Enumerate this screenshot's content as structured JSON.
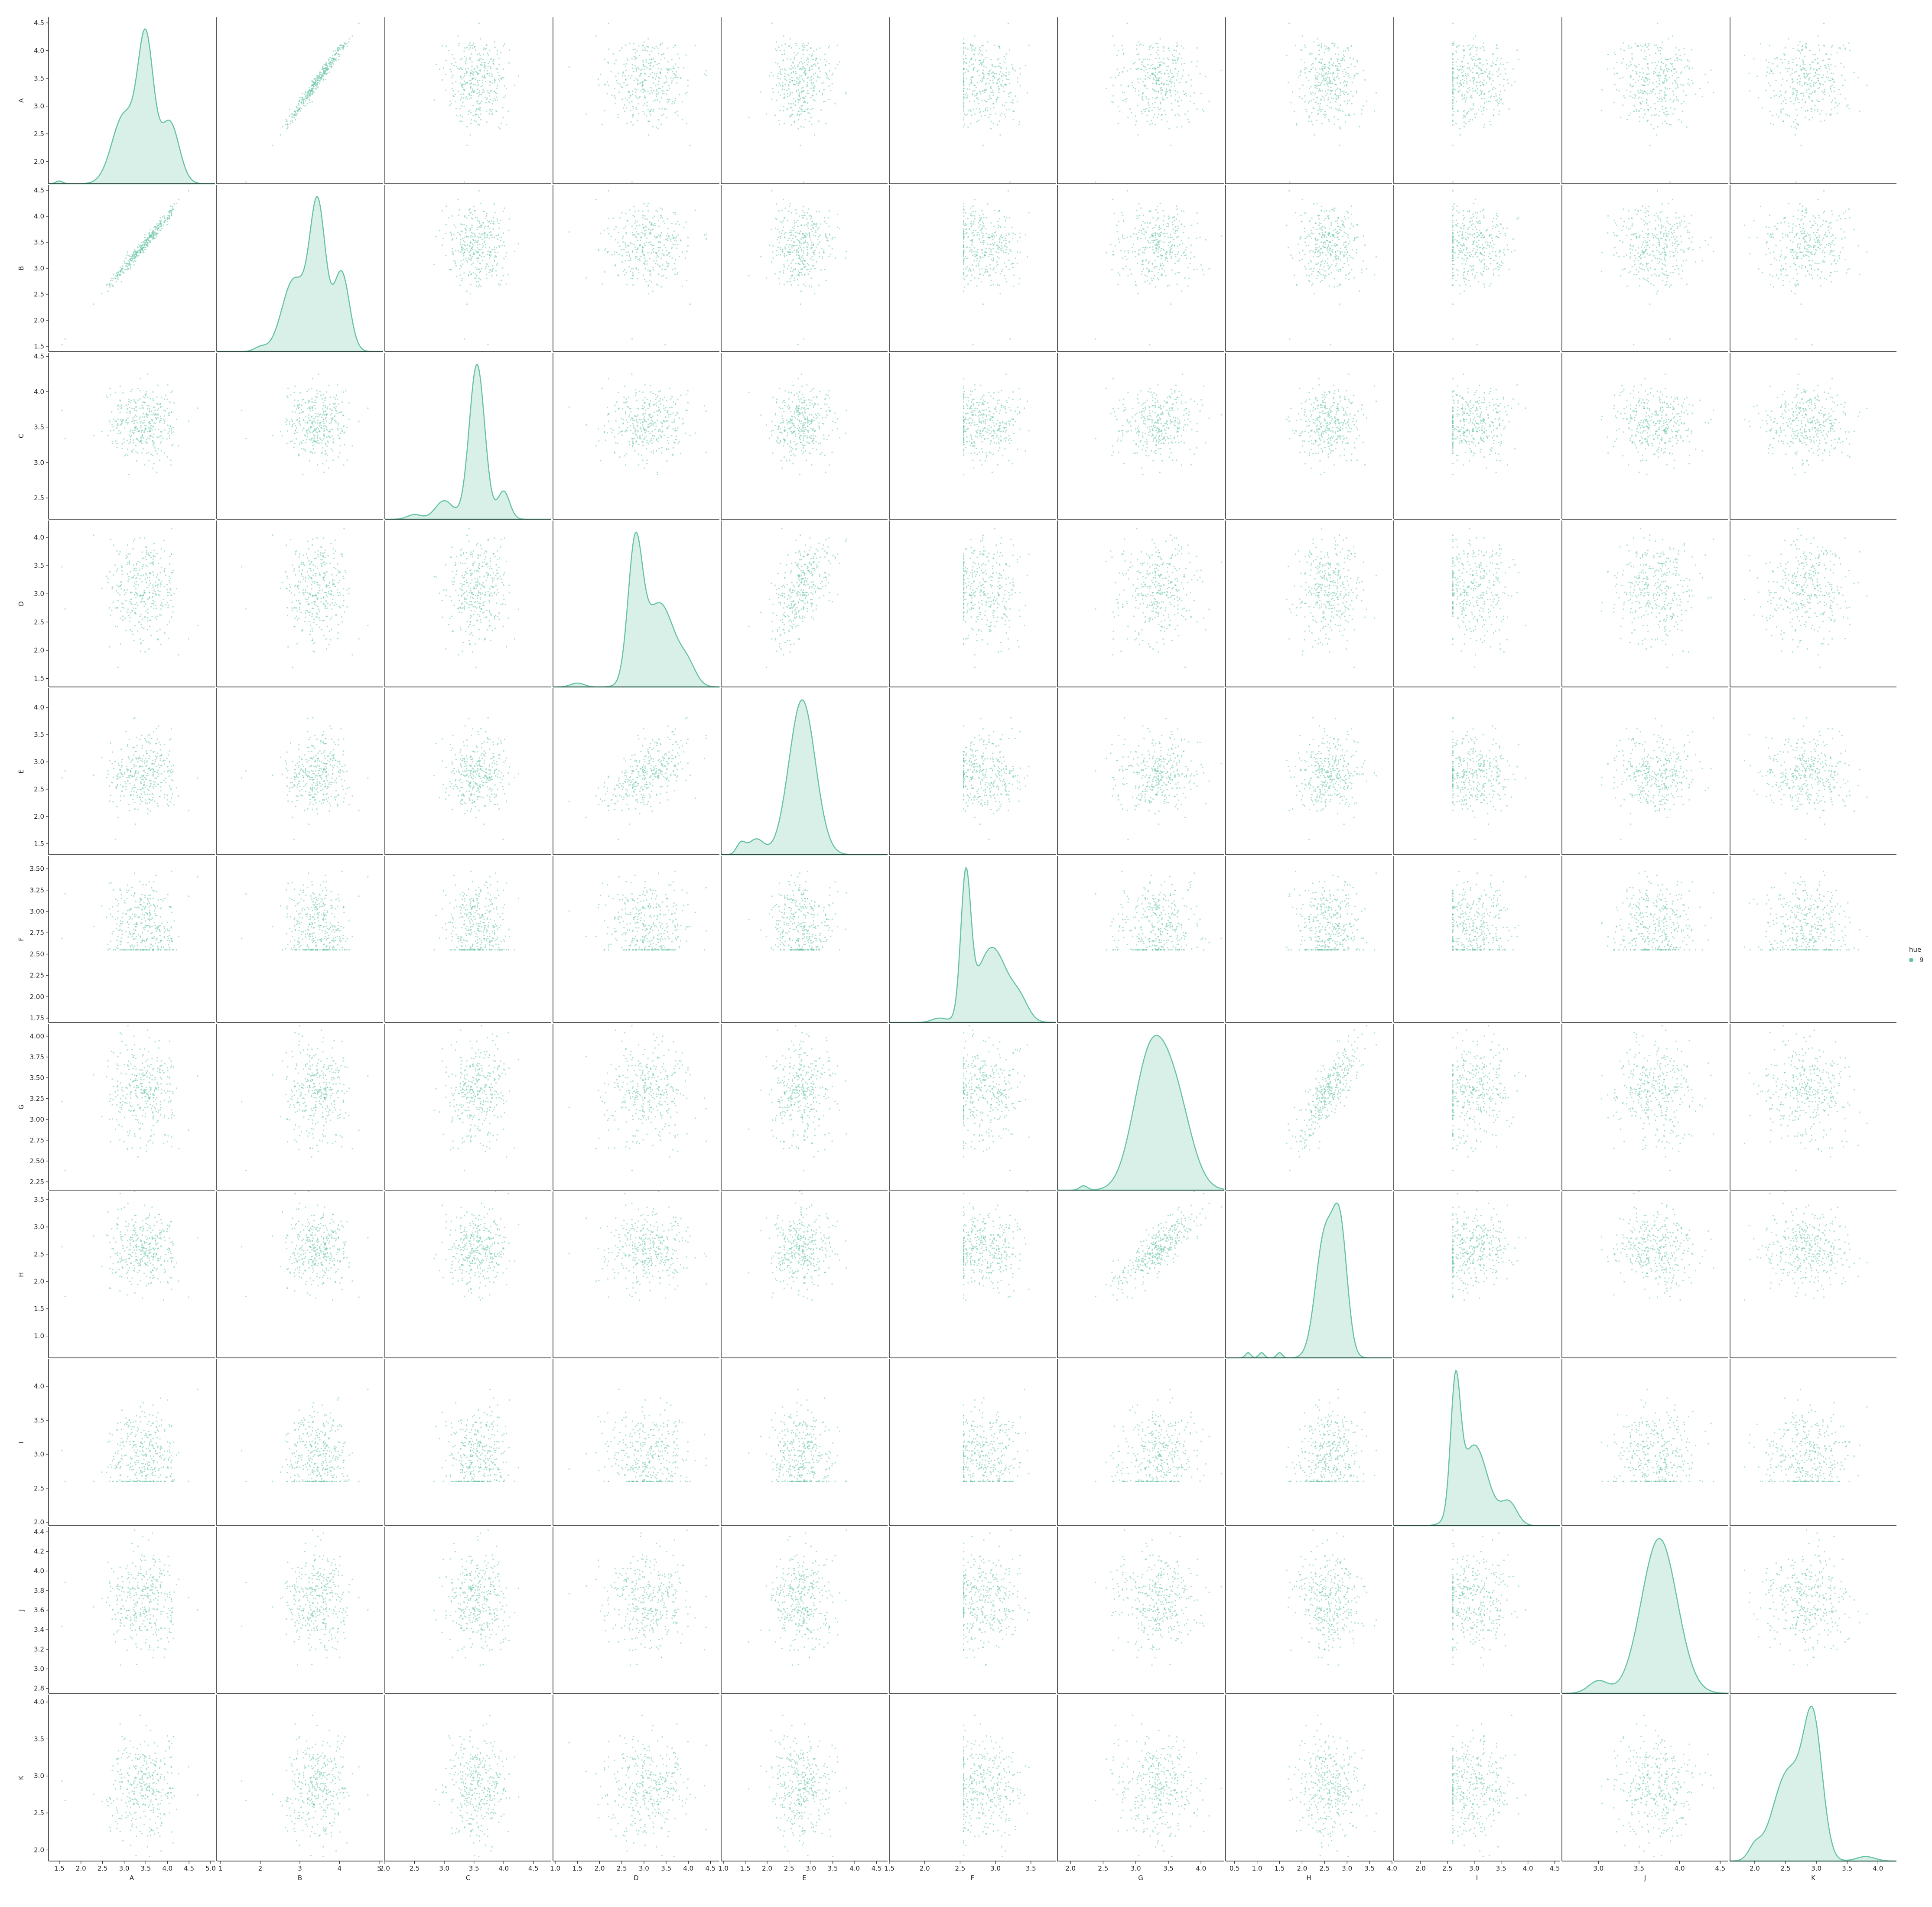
{
  "chart_data": {
    "type": "pairplot",
    "variables": [
      "A",
      "B",
      "C",
      "D",
      "E",
      "F",
      "G",
      "H",
      "I",
      "J",
      "K"
    ],
    "diagonal": "kde",
    "offdiagonal": "scatter",
    "legend": {
      "title": "hue",
      "entries": [
        "9"
      ],
      "placement": "right"
    },
    "color": "#66c2a5",
    "axes": [
      {
        "name": "A",
        "lim": [
          1.25,
          5.1
        ],
        "ticks": [
          "1.5",
          "2.0",
          "2.5",
          "3.0",
          "3.5",
          "4.0",
          "4.5",
          "5.0"
        ],
        "rowlim": [
          1.6,
          4.6
        ],
        "rowticks": [
          "2.0",
          "2.5",
          "3.0",
          "3.5",
          "4.0",
          "4.5"
        ],
        "mean": 3.45,
        "sd": 0.45
      },
      {
        "name": "B",
        "lim": [
          0.9,
          5.1
        ],
        "ticks": [
          "1",
          "2",
          "3",
          "4",
          "5"
        ],
        "rowlim": [
          1.4,
          4.6
        ],
        "rowticks": [
          "1.5",
          "2.0",
          "2.5",
          "3.0",
          "3.5",
          "4.0",
          "4.5"
        ],
        "mean": 3.45,
        "sd": 0.45
      },
      {
        "name": "C",
        "lim": [
          2.0,
          4.8
        ],
        "ticks": [
          "2.0",
          "2.5",
          "3.0",
          "3.5",
          "4.0",
          "4.5"
        ],
        "rowlim": [
          2.2,
          4.55
        ],
        "rowticks": [
          "2.5",
          "3.0",
          "3.5",
          "4.0",
          "4.5"
        ],
        "mean": 3.55,
        "sd": 0.25
      },
      {
        "name": "D",
        "lim": [
          0.95,
          4.7
        ],
        "ticks": [
          "1.0",
          "1.5",
          "2.0",
          "2.5",
          "3.0",
          "3.5",
          "4.0",
          "4.5"
        ],
        "rowlim": [
          1.35,
          4.3
        ],
        "rowticks": [
          "1.5",
          "2.0",
          "2.5",
          "3.0",
          "3.5",
          "4.0"
        ],
        "mean": 3.05,
        "sd": 0.45
      },
      {
        "name": "E",
        "lim": [
          0.95,
          4.75
        ],
        "ticks": [
          "1.0",
          "1.5",
          "2.0",
          "2.5",
          "3.0",
          "3.5",
          "4.0",
          "4.5"
        ],
        "rowlim": [
          1.3,
          4.35
        ],
        "rowticks": [
          "1.5",
          "2.0",
          "2.5",
          "3.0",
          "3.5",
          "4.0"
        ],
        "mean": 2.75,
        "sd": 0.35
      },
      {
        "name": "F",
        "lim": [
          1.5,
          3.85
        ],
        "ticks": [
          "1.5",
          "2.0",
          "2.5",
          "3.0",
          "3.5"
        ],
        "rowlim": [
          1.7,
          3.65
        ],
        "rowticks": [
          "1.75",
          "2.00",
          "2.25",
          "2.50",
          "2.75",
          "3.00",
          "3.25",
          "3.50"
        ],
        "mean": 2.85,
        "sd": 0.3,
        "floor": 2.55
      },
      {
        "name": "G",
        "lim": [
          1.8,
          4.35
        ],
        "ticks": [
          "2.0",
          "2.5",
          "3.0",
          "3.5",
          "4.0"
        ],
        "rowlim": [
          2.15,
          4.15
        ],
        "rowticks": [
          "2.25",
          "2.50",
          "2.75",
          "3.00",
          "3.25",
          "3.50",
          "3.75",
          "4.00"
        ],
        "mean": 3.35,
        "sd": 0.3
      },
      {
        "name": "H",
        "lim": [
          0.3,
          4.0
        ],
        "ticks": [
          "0.5",
          "1.0",
          "1.5",
          "2.0",
          "2.5",
          "3.0",
          "3.5",
          "4.0"
        ],
        "rowlim": [
          0.6,
          3.65
        ],
        "rowticks": [
          "1.0",
          "1.5",
          "2.0",
          "2.5",
          "3.0",
          "3.5"
        ],
        "mean": 2.6,
        "sd": 0.35
      },
      {
        "name": "I",
        "lim": [
          1.5,
          4.6
        ],
        "ticks": [
          "2.0",
          "2.5",
          "3.0",
          "3.5",
          "4.0",
          "4.5"
        ],
        "rowlim": [
          1.95,
          4.4
        ],
        "rowticks": [
          "2.0",
          "2.5",
          "3.0",
          "3.5",
          "4.0"
        ],
        "mean": 2.95,
        "sd": 0.35,
        "floor": 2.6
      },
      {
        "name": "J",
        "lim": [
          2.55,
          4.6
        ],
        "ticks": [
          "3.0",
          "3.5",
          "4.0",
          "4.5"
        ],
        "rowlim": [
          2.75,
          4.45
        ],
        "rowticks": [
          "2.8",
          "3.0",
          "3.2",
          "3.4",
          "3.6",
          "3.8",
          "4.0",
          "4.2",
          "4.4"
        ],
        "mean": 3.7,
        "sd": 0.25
      },
      {
        "name": "K",
        "lim": [
          1.6,
          4.3
        ],
        "ticks": [
          "2.0",
          "2.5",
          "3.0",
          "3.5",
          "4.0"
        ],
        "rowlim": [
          1.85,
          4.1
        ],
        "rowticks": [
          "2.0",
          "2.5",
          "3.0",
          "3.5",
          "4.0"
        ],
        "mean": 2.85,
        "sd": 0.35
      }
    ],
    "correlated_pairs": [
      {
        "x": "A",
        "y": "B",
        "r": 0.99
      },
      {
        "x": "D",
        "y": "E",
        "r": 0.55
      },
      {
        "x": "G",
        "y": "H",
        "r": 0.8
      }
    ],
    "kde_peaks": {
      "A": [
        {
          "x": 1.5,
          "w": 0.08,
          "h": 0.02
        },
        {
          "x": 3.0,
          "w": 0.28,
          "h": 0.5
        },
        {
          "x": 3.5,
          "w": 0.18,
          "h": 1.0
        },
        {
          "x": 4.05,
          "w": 0.22,
          "h": 0.45
        }
      ],
      "B": [
        {
          "x": 2.0,
          "w": 0.15,
          "h": 0.03
        },
        {
          "x": 2.85,
          "w": 0.3,
          "h": 0.5
        },
        {
          "x": 3.45,
          "w": 0.2,
          "h": 1.0
        },
        {
          "x": 4.05,
          "w": 0.2,
          "h": 0.55
        }
      ],
      "C": [
        {
          "x": 2.5,
          "w": 0.12,
          "h": 0.03
        },
        {
          "x": 3.0,
          "w": 0.15,
          "h": 0.12
        },
        {
          "x": 3.55,
          "w": 0.13,
          "h": 1.0
        },
        {
          "x": 4.0,
          "w": 0.1,
          "h": 0.18
        }
      ],
      "D": [
        {
          "x": 1.5,
          "w": 0.15,
          "h": 0.03
        },
        {
          "x": 2.8,
          "w": 0.16,
          "h": 1.0
        },
        {
          "x": 3.35,
          "w": 0.35,
          "h": 0.65
        },
        {
          "x": 4.0,
          "w": 0.18,
          "h": 0.12
        }
      ],
      "E": [
        {
          "x": 1.4,
          "w": 0.1,
          "h": 0.07
        },
        {
          "x": 1.75,
          "w": 0.18,
          "h": 0.1
        },
        {
          "x": 2.8,
          "w": 0.3,
          "h": 1.0
        }
      ],
      "F": [
        {
          "x": 2.2,
          "w": 0.1,
          "h": 0.03
        },
        {
          "x": 2.58,
          "w": 0.07,
          "h": 1.0
        },
        {
          "x": 2.95,
          "w": 0.22,
          "h": 0.55
        },
        {
          "x": 3.35,
          "w": 0.12,
          "h": 0.12
        }
      ],
      "G": [
        {
          "x": 2.2,
          "w": 0.06,
          "h": 0.03
        },
        {
          "x": 3.2,
          "w": 0.25,
          "h": 0.85
        },
        {
          "x": 3.6,
          "w": 0.25,
          "h": 0.6
        }
      ],
      "H": [
        {
          "x": 0.8,
          "w": 0.06,
          "h": 0.03
        },
        {
          "x": 1.1,
          "w": 0.06,
          "h": 0.03
        },
        {
          "x": 1.5,
          "w": 0.06,
          "h": 0.03
        },
        {
          "x": 2.5,
          "w": 0.2,
          "h": 0.7
        },
        {
          "x": 2.85,
          "w": 0.16,
          "h": 0.7
        }
      ],
      "I": [
        {
          "x": 2.65,
          "w": 0.09,
          "h": 1.0
        },
        {
          "x": 3.0,
          "w": 0.25,
          "h": 0.65
        },
        {
          "x": 3.65,
          "w": 0.15,
          "h": 0.18
        }
      ],
      "J": [
        {
          "x": 3.0,
          "w": 0.12,
          "h": 0.08
        },
        {
          "x": 3.75,
          "w": 0.22,
          "h": 1.0
        }
      ],
      "K": [
        {
          "x": 2.0,
          "w": 0.1,
          "h": 0.08
        },
        {
          "x": 2.55,
          "w": 0.25,
          "h": 0.6
        },
        {
          "x": 2.95,
          "w": 0.15,
          "h": 0.85
        },
        {
          "x": 3.8,
          "w": 0.15,
          "h": 0.03
        }
      ]
    }
  }
}
